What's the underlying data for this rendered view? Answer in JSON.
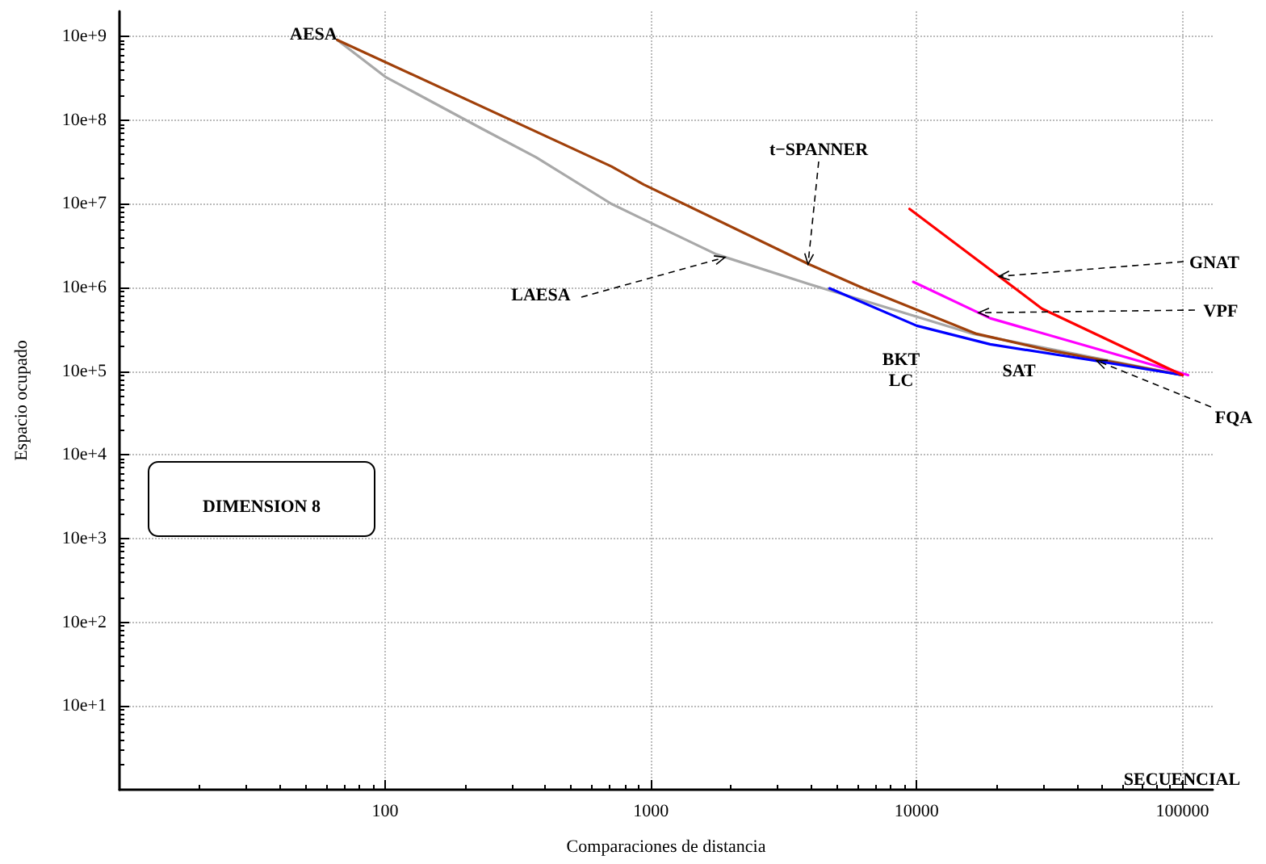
{
  "chart_data": {
    "type": "line",
    "xlabel": "Comparaciones de distancia",
    "ylabel": "Espacio ocupado",
    "log": "xy",
    "grid": true,
    "marker": "none",
    "line_style": "solid",
    "xlim": [
      10,
      130000
    ],
    "xticks": [
      100,
      1000,
      10000,
      100000
    ],
    "ylim": [
      10,
      20000000000
    ],
    "yticks": [
      {
        "value": 100,
        "label": "10e+1"
      },
      {
        "value": 1000,
        "label": "10e+2"
      },
      {
        "value": 10000,
        "label": "10e+3"
      },
      {
        "value": 100000,
        "label": "10e+4"
      },
      {
        "value": 1000000,
        "label": "10e+5"
      },
      {
        "value": 10000000,
        "label": "10e+6"
      },
      {
        "value": 100000000,
        "label": "10e+7"
      },
      {
        "value": 1000000000,
        "label": "10e+8"
      },
      {
        "value": 10000000000,
        "label": "10e+9"
      }
    ],
    "series": [
      {
        "color": "#a8a8a8",
        "x": [
          66,
          100,
          233,
          370,
          710,
          940,
          1760,
          3930,
          6700,
          16300,
          100000
        ],
        "values": [
          9100000000,
          3300000000,
          780000000,
          360000000,
          100000000,
          65000000,
          25000000,
          11000000,
          6600000,
          2800000,
          900000
        ]
      },
      {
        "color": "#a0400a",
        "x": [
          66,
          710,
          940,
          3930,
          6300,
          16800,
          31000,
          100000
        ],
        "values": [
          9100000000,
          280000000,
          170000000,
          19000000,
          9800000,
          2800000,
          1800000,
          900000
        ]
      },
      {
        "color": "#0000ff",
        "x": [
          4700,
          10000,
          18900,
          46000,
          100000
        ],
        "values": [
          9800000,
          3500000,
          2100000,
          1350000,
          900000
        ]
      },
      {
        "color": "#ff00ff",
        "x": [
          9700,
          18900,
          105000
        ],
        "values": [
          11700000,
          4300000,
          900000
        ]
      },
      {
        "color": "#ff0000",
        "x": [
          9400,
          29600,
          100000
        ],
        "values": [
          87000000,
          5600000,
          900000
        ]
      }
    ],
    "annotations": [
      {
        "text": "AESA",
        "x": 66,
        "y": 9100000000
      },
      {
        "text": "t−SPANNER",
        "x": 3900,
        "y": 19000000
      },
      {
        "text": "LAESA",
        "x": 1900,
        "y": 23000000
      },
      {
        "text": "GNAT",
        "x": 20400,
        "y": 13600000
      },
      {
        "text": "VPF",
        "x": 17100,
        "y": 5000000
      },
      {
        "text": "FQA",
        "x": 47500,
        "y": 1340000
      },
      "BKT",
      "LC",
      "SAT",
      "DIMENSION 8",
      "SECUENCIAL"
    ]
  }
}
